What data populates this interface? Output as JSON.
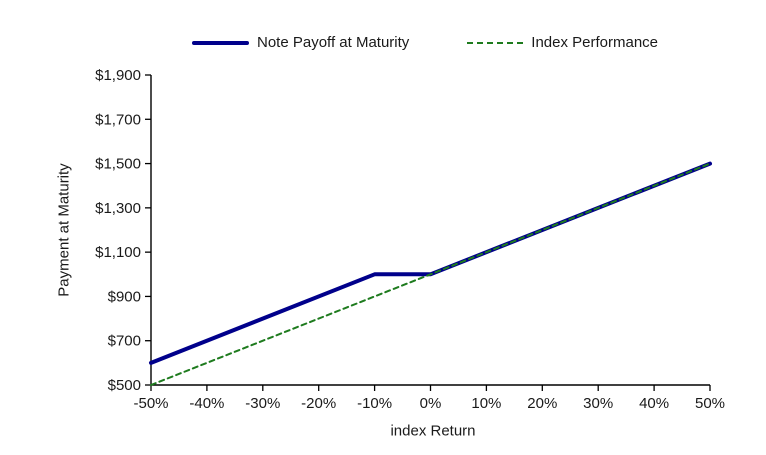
{
  "chart_data": {
    "type": "line",
    "title": "",
    "xlabel": "index Return",
    "ylabel": "Payment at Maturity",
    "x_range": [
      -50,
      50
    ],
    "y_range": [
      500,
      1900
    ],
    "grid": false,
    "legend_position": "top",
    "axis_color": "#000000",
    "text_color": "#1a1a1a",
    "x_ticks": [
      {
        "value": -50,
        "label": "-50%"
      },
      {
        "value": -40,
        "label": "-40%"
      },
      {
        "value": -30,
        "label": "-30%"
      },
      {
        "value": -20,
        "label": "-20%"
      },
      {
        "value": -10,
        "label": "-10%"
      },
      {
        "value": 0,
        "label": "0%"
      },
      {
        "value": 10,
        "label": "10%"
      },
      {
        "value": 20,
        "label": "20%"
      },
      {
        "value": 30,
        "label": "30%"
      },
      {
        "value": 40,
        "label": "40%"
      },
      {
        "value": 50,
        "label": "50%"
      }
    ],
    "y_ticks": [
      {
        "value": 500,
        "label": "$500"
      },
      {
        "value": 700,
        "label": "$700"
      },
      {
        "value": 900,
        "label": "$900"
      },
      {
        "value": 1100,
        "label": "$1,100"
      },
      {
        "value": 1300,
        "label": "$1,300"
      },
      {
        "value": 1500,
        "label": "$1,500"
      },
      {
        "value": 1700,
        "label": "$1,700"
      },
      {
        "value": 1900,
        "label": "$1,900"
      }
    ],
    "series": [
      {
        "name": "Note Payoff at Maturity",
        "color": "#00008B",
        "line_style": "solid",
        "line_width": 4,
        "points": [
          [
            -50,
            600
          ],
          [
            -10,
            1000
          ],
          [
            0,
            1000
          ],
          [
            50,
            1500
          ]
        ]
      },
      {
        "name": "Index Performance",
        "color": "#1E7B1E",
        "line_style": "dashed",
        "line_width": 2,
        "points": [
          [
            -50,
            500
          ],
          [
            50,
            1500
          ]
        ]
      }
    ]
  }
}
